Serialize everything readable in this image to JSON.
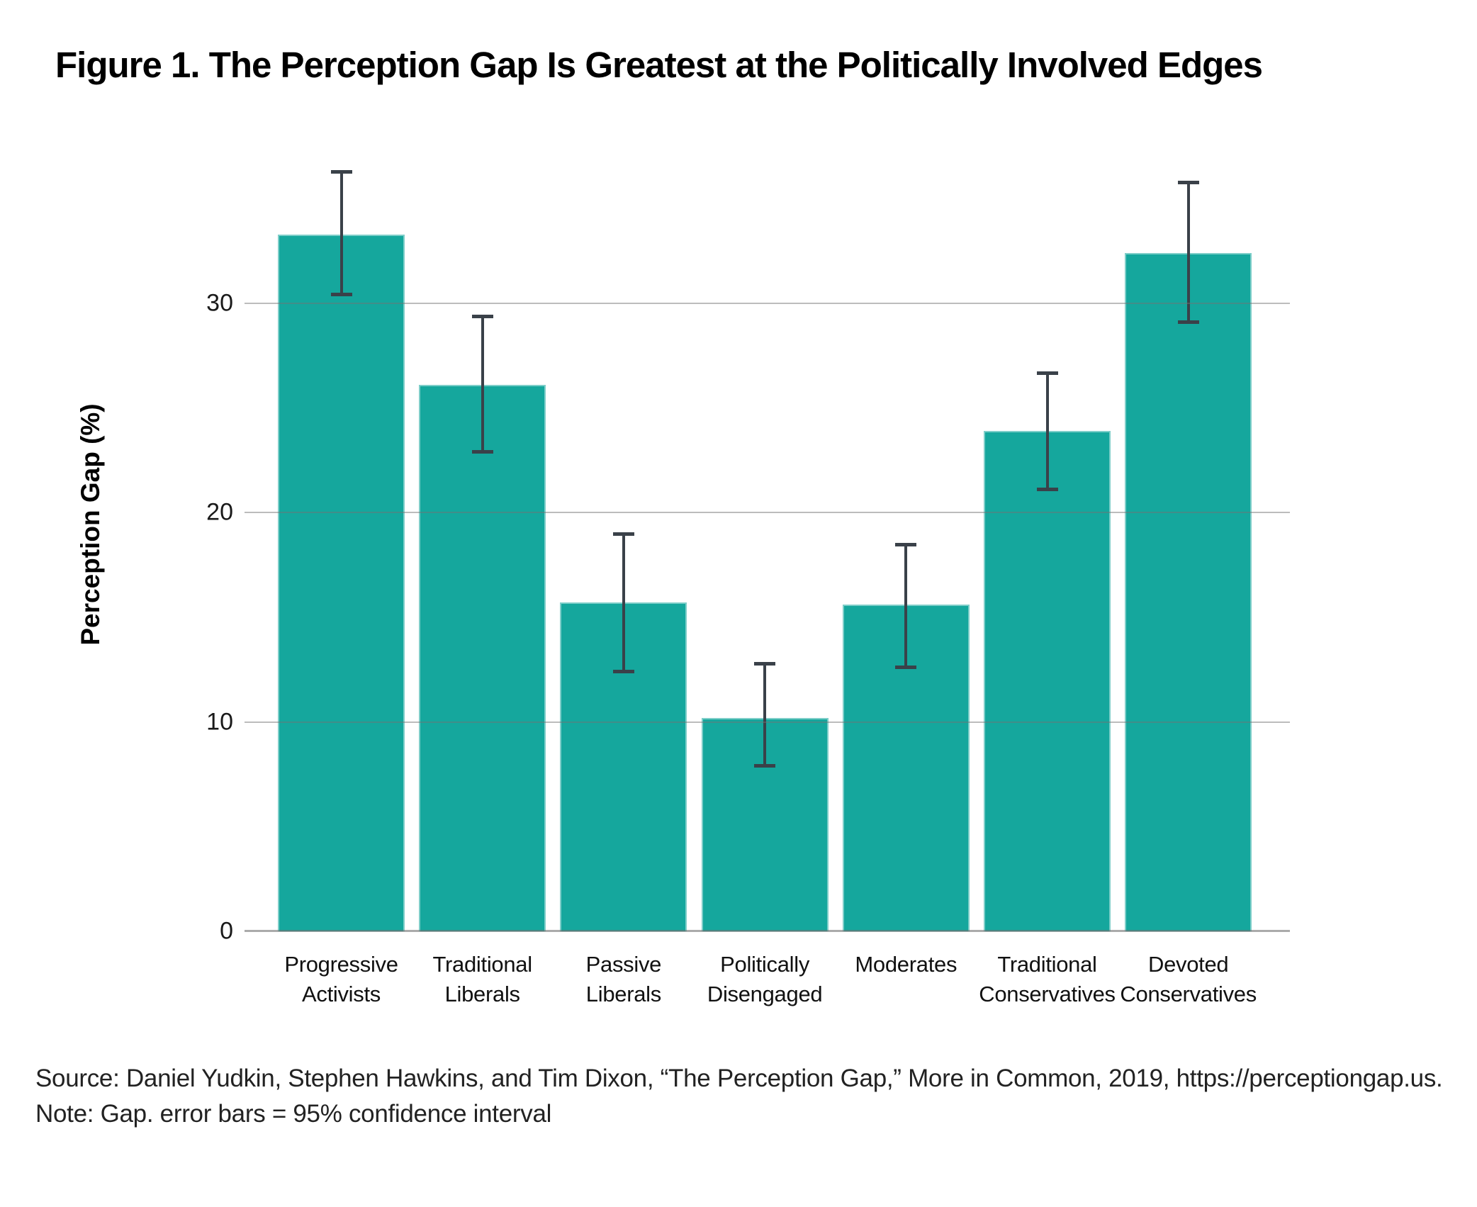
{
  "figure": {
    "title": "Figure 1. The Perception Gap Is Greatest at the Politically Involved Edges",
    "source_line": "Source: Daniel Yudkin, Stephen Hawkins, and Tim Dixon, “The Perception Gap,” More in Common, 2019, https://perceptiongap.us.",
    "note_line": "Note: Gap. error bars = 95% confidence interval"
  },
  "chart_data": {
    "type": "bar",
    "title": "Figure 1. The Perception Gap Is Greatest at the Politically Involved Edges",
    "xlabel": "",
    "ylabel": "Perception Gap (%)",
    "ylim": [
      0,
      38.4
    ],
    "yticks": [
      0,
      10,
      20,
      30
    ],
    "grid": "horizontal gridlines at y ticks, drawn over bars",
    "legend": "none",
    "bar_color": "#15A79D",
    "error_bar_color": "#3A4149",
    "categories": [
      "Progressive Activists",
      "Traditional Liberals",
      "Passive Liberals",
      "Politically Disengaged",
      "Moderates",
      "Traditional Conservatives",
      "Devoted Conservatives"
    ],
    "series": [
      {
        "name": "Perception Gap (%)",
        "values": [
          33.3,
          26.1,
          15.7,
          10.2,
          15.6,
          23.9,
          32.4
        ],
        "ci_low": [
          30.4,
          22.9,
          12.4,
          7.9,
          12.6,
          21.1,
          29.1
        ],
        "ci_high": [
          36.3,
          29.4,
          19.0,
          12.8,
          18.5,
          26.7,
          35.8
        ]
      }
    ]
  }
}
